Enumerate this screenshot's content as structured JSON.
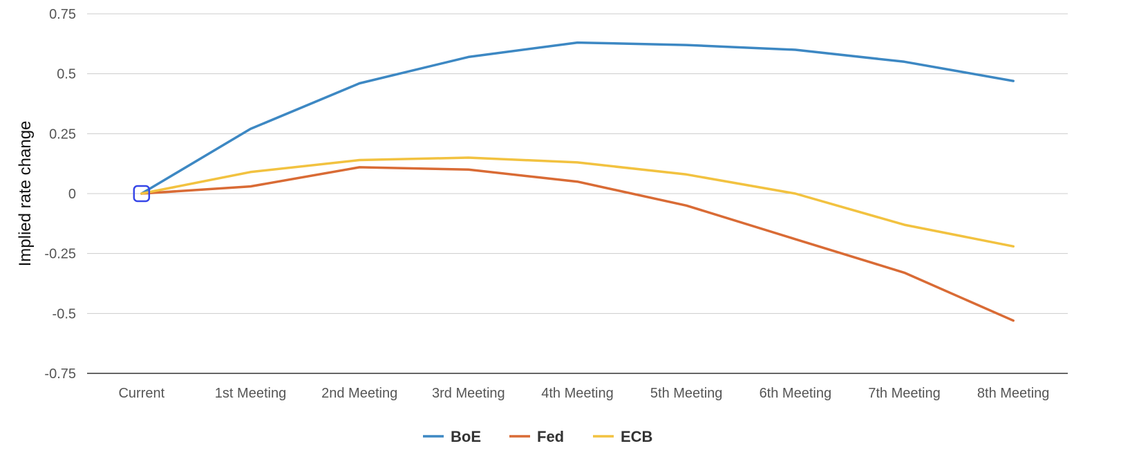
{
  "chart_data": {
    "type": "line",
    "title": "",
    "xlabel": "",
    "ylabel": "Implied rate change",
    "categories": [
      "Current",
      "1st Meeting",
      "2nd Meeting",
      "3rd Meeting",
      "4th Meeting",
      "5th Meeting",
      "6th Meeting",
      "7th Meeting",
      "8th Meeting"
    ],
    "ylim": [
      -0.75,
      0.75
    ],
    "yticks": [
      {
        "value": 0.75,
        "label": "0.75"
      },
      {
        "value": 0.5,
        "label": "0.5"
      },
      {
        "value": 0.25,
        "label": "0.25"
      },
      {
        "value": 0,
        "label": "0"
      },
      {
        "value": -0.25,
        "label": "-0.25"
      },
      {
        "value": -0.5,
        "label": "-0.5"
      },
      {
        "value": -0.75,
        "label": "-0.75"
      }
    ],
    "grid": true,
    "legend_position": "bottom",
    "series": [
      {
        "name": "BoE",
        "color": "#3d88c3",
        "values": [
          0,
          0.27,
          0.46,
          0.57,
          0.63,
          0.62,
          0.6,
          0.55,
          0.47
        ]
      },
      {
        "name": "Fed",
        "color": "#d96b35",
        "values": [
          0,
          0.03,
          0.11,
          0.1,
          0.05,
          -0.05,
          -0.19,
          -0.33,
          -0.53
        ]
      },
      {
        "name": "ECB",
        "color": "#f2c240",
        "values": [
          0,
          0.09,
          0.14,
          0.15,
          0.13,
          0.08,
          0.0,
          -0.13,
          -0.22
        ]
      }
    ],
    "highlight_marker": {
      "category": "Current",
      "value": 0,
      "color": "#3646e8"
    }
  }
}
